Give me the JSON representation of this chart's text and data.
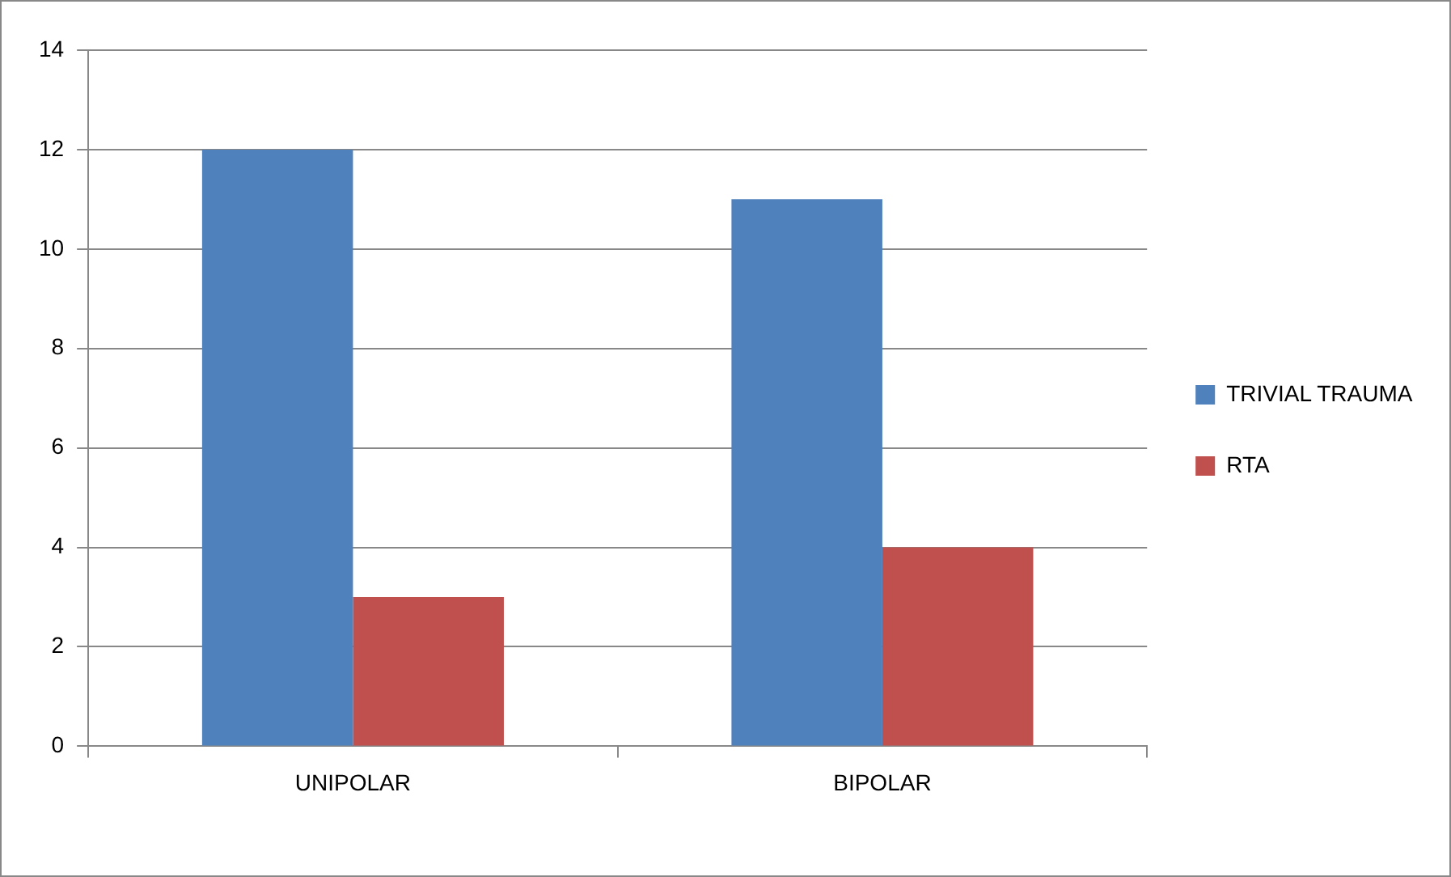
{
  "chart_data": {
    "type": "bar",
    "categories": [
      "UNIPOLAR",
      "BIPOLAR"
    ],
    "series": [
      {
        "name": "TRIVIAL TRAUMA",
        "color": "#4f81bd",
        "values": [
          12,
          11
        ]
      },
      {
        "name": "RTA",
        "color": "#c0504d",
        "values": [
          3,
          4
        ]
      }
    ],
    "ylim": [
      0,
      14
    ],
    "yticks": [
      0,
      2,
      4,
      6,
      8,
      10,
      12,
      14
    ],
    "grid": "y",
    "legend": "right"
  }
}
